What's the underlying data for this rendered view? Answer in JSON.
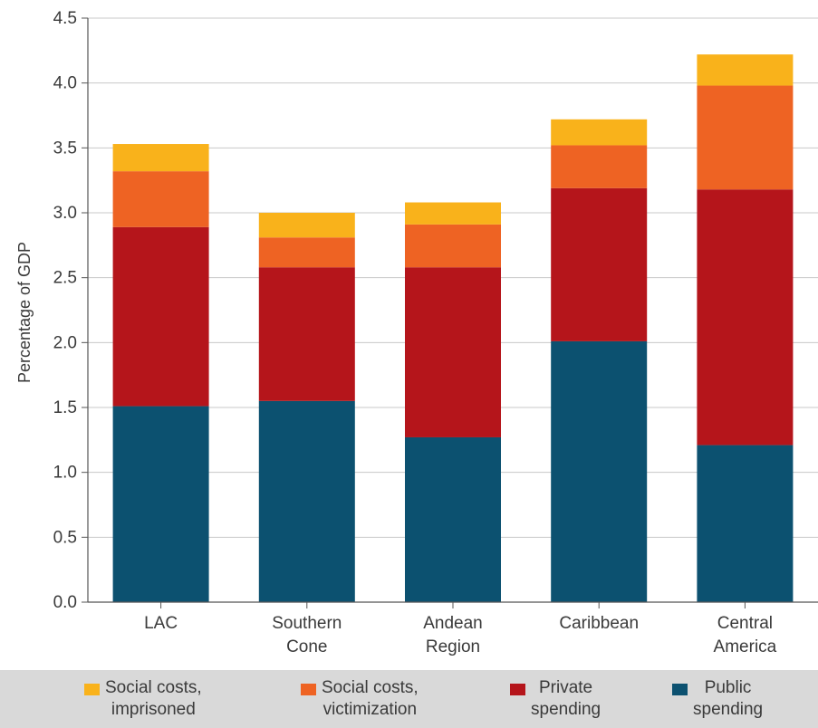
{
  "chart_data": {
    "type": "bar",
    "stacked": true,
    "categories": [
      [
        "LAC"
      ],
      [
        "Southern",
        "Cone"
      ],
      [
        "Andean",
        "Region"
      ],
      [
        "Caribbean"
      ],
      [
        "Central",
        "America"
      ]
    ],
    "ylabel": "Percentage of GDP",
    "ylim": [
      0,
      4.5
    ],
    "yticks": [
      "0.0",
      "0.5",
      "1.0",
      "1.5",
      "2.0",
      "2.5",
      "3.0",
      "3.5",
      "4.0",
      "4.5"
    ],
    "grid": true,
    "legend_position": "bottom",
    "series": [
      {
        "key": "public",
        "color": "#0c5170",
        "values": [
          1.51,
          1.55,
          1.27,
          2.01,
          1.21
        ]
      },
      {
        "key": "private",
        "color": "#b5151b",
        "values": [
          1.38,
          1.03,
          1.31,
          1.18,
          1.97
        ]
      },
      {
        "key": "victimization",
        "color": "#ee6323",
        "values": [
          0.43,
          0.23,
          0.33,
          0.33,
          0.8
        ]
      },
      {
        "key": "imprisoned",
        "color": "#f9b21b",
        "values": [
          0.21,
          0.19,
          0.17,
          0.2,
          0.24
        ]
      }
    ]
  },
  "legend": [
    {
      "lines": [
        "Social costs,",
        "imprisoned"
      ],
      "color": "#f9b21b",
      "icon": "square-swatch"
    },
    {
      "lines": [
        "Social costs,",
        "victimization"
      ],
      "color": "#ee6323",
      "icon": "square-swatch"
    },
    {
      "lines": [
        "Private",
        "spending"
      ],
      "color": "#b5151b",
      "icon": "square-swatch"
    },
    {
      "lines": [
        "Public",
        "spending"
      ],
      "color": "#0c5170",
      "icon": "square-swatch"
    }
  ]
}
